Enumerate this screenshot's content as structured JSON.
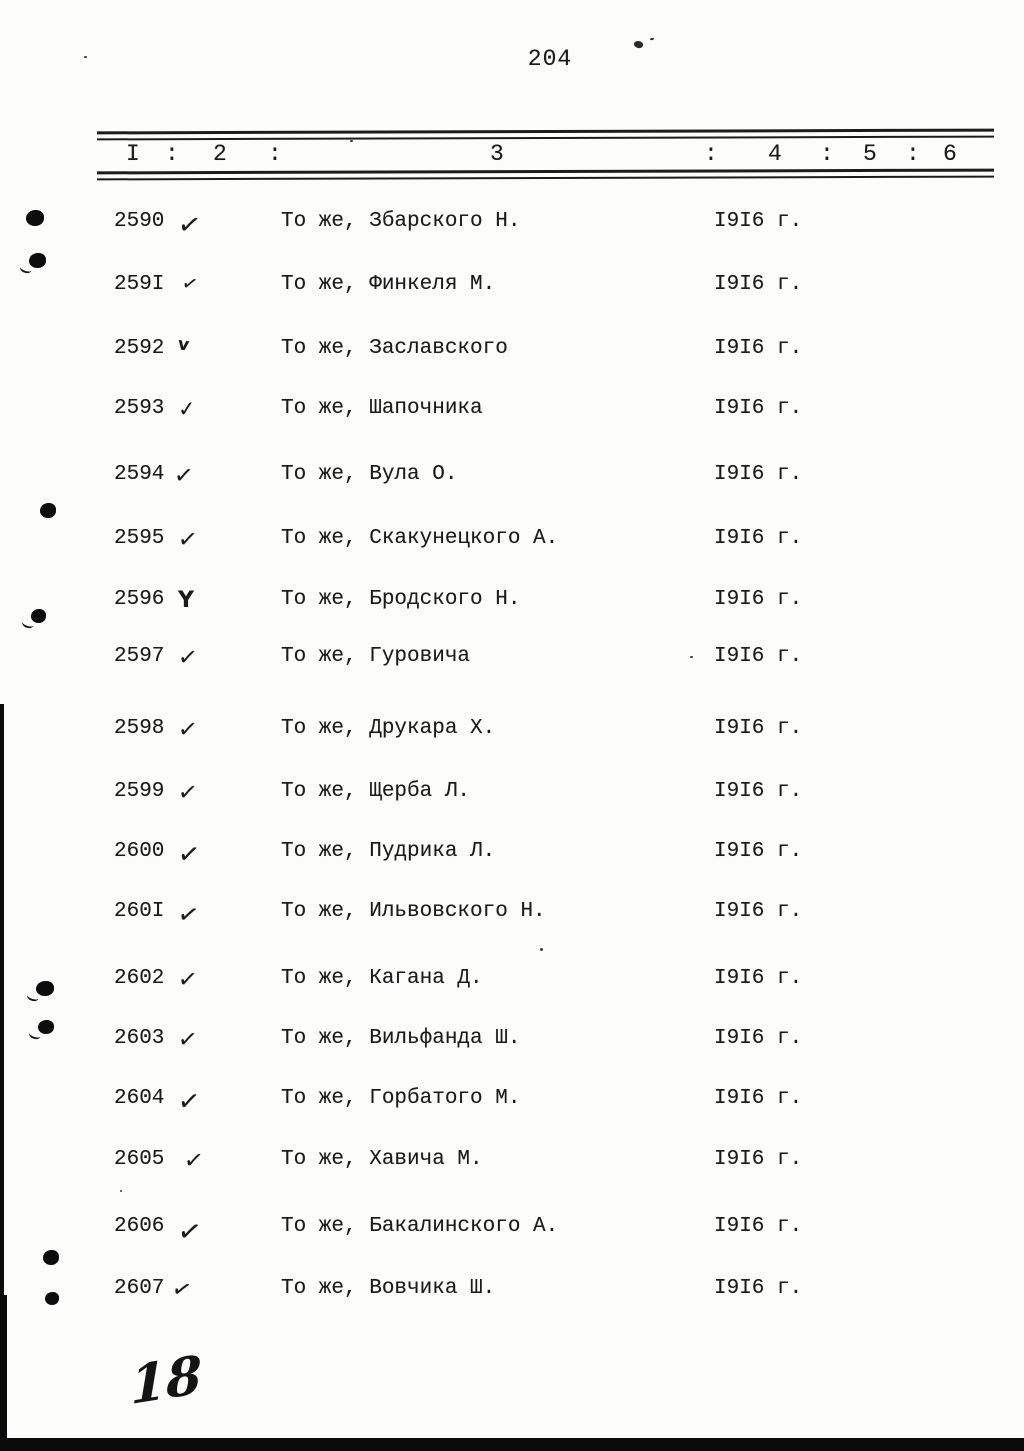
{
  "page": {
    "number": "204",
    "handwritten_note": "18"
  },
  "table": {
    "header_cells": [
      "I",
      ":",
      "2",
      ":",
      "3",
      ":",
      "4",
      ":",
      "5",
      ":",
      "6"
    ],
    "rows": [
      {
        "num": "2590",
        "check": "✓",
        "text": "То же, Збарского Н.",
        "year": "I9I6 г."
      },
      {
        "num": "259I",
        "check": "✓",
        "text": "То же, Финкеля М.",
        "year": "I9I6 г."
      },
      {
        "num": "2592",
        "check": "v",
        "text": "То же, Заславского",
        "year": "I9I6 г."
      },
      {
        "num": "2593",
        "check": "✓",
        "text": "То же, Шапочника",
        "year": "I9I6 г."
      },
      {
        "num": "2594",
        "check": "✓",
        "text": "То же, Вула О.",
        "year": "I9I6 г."
      },
      {
        "num": "2595",
        "check": "✓",
        "text": "То же, Скакунецкого А.",
        "year": "I9I6 г."
      },
      {
        "num": "2596",
        "check": "Y",
        "text": "То же, Бродского Н.",
        "year": "I9I6 г."
      },
      {
        "num": "2597",
        "check": "✓",
        "text": "То же, Гуровича",
        "year": "I9I6 г."
      },
      {
        "num": "2598",
        "check": "✓",
        "text": "То же, Друкара Х.",
        "year": "I9I6 г."
      },
      {
        "num": "2599",
        "check": "✓",
        "text": "То же, Щерба Л.",
        "year": "I9I6 г."
      },
      {
        "num": "2600",
        "check": "✓",
        "text": "То же, Пудрика Л.",
        "year": "I9I6 г."
      },
      {
        "num": "260I",
        "check": "✓",
        "text": "То же, Ильвовского Н.",
        "year": "I9I6 г."
      },
      {
        "num": "2602",
        "check": "✓",
        "text": "То же, Кагана Д.",
        "year": "I9I6 г."
      },
      {
        "num": "2603",
        "check": "✓",
        "text": "То же, Вильфанда Ш.",
        "year": "I9I6 г."
      },
      {
        "num": "2604",
        "check": "✓",
        "text": "То же, Горбатого М.",
        "year": "I9I6 г."
      },
      {
        "num": "2605",
        "check": "✓",
        "text": "То же, Хавича М.",
        "year": "I9I6 г."
      },
      {
        "num": "2606",
        "check": "✓",
        "text": "То же, Бакалинского А.",
        "year": "I9I6 г."
      },
      {
        "num": "2607",
        "check": "✓",
        "text": "То же, Вовчика Ш.",
        "year": "I9I6 г."
      }
    ]
  }
}
